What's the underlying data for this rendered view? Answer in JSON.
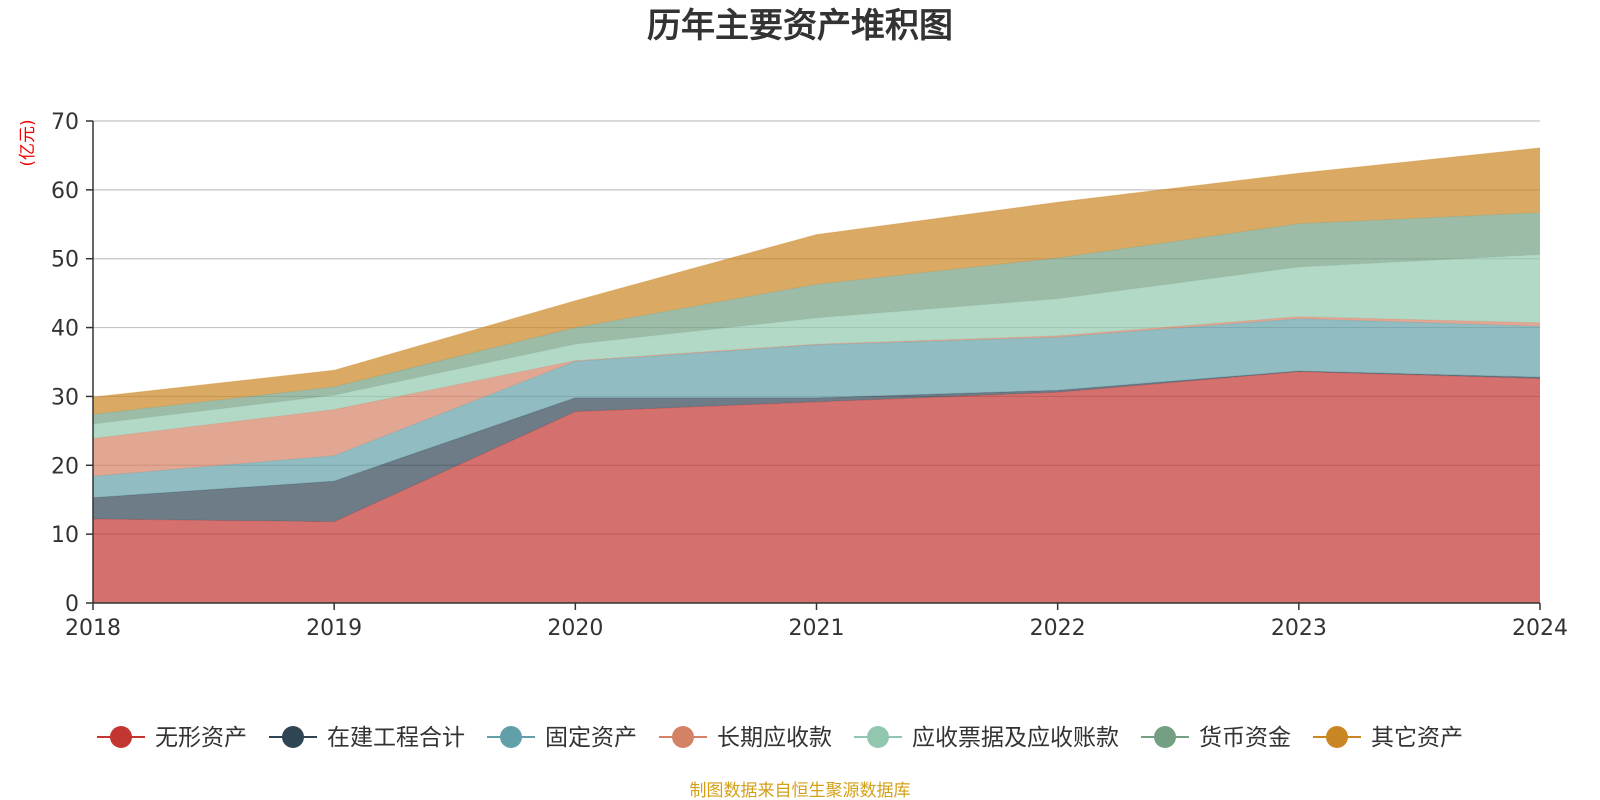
{
  "chart_data": {
    "type": "area",
    "stacked": true,
    "title": "历年主要资产堆积图",
    "ylabel": "(亿元)",
    "xlabel": "",
    "categories": [
      "2018",
      "2019",
      "2020",
      "2021",
      "2022",
      "2023",
      "2024"
    ],
    "ylim": [
      0,
      70
    ],
    "yticks": [
      0,
      10,
      20,
      30,
      40,
      50,
      60,
      70
    ],
    "grid": true,
    "legend_position": "bottom",
    "series": [
      {
        "name": "无形资产",
        "color": "#c23531",
        "values": [
          12.2,
          11.8,
          27.8,
          29.2,
          30.6,
          33.6,
          32.6
        ]
      },
      {
        "name": "在建工程合计",
        "color": "#2f4554",
        "values": [
          3.1,
          5.9,
          2.0,
          0.6,
          0.3,
          0.1,
          0.2
        ]
      },
      {
        "name": "固定资产",
        "color": "#61a0a8",
        "values": [
          3.1,
          3.7,
          5.3,
          7.7,
          7.7,
          7.6,
          7.4
        ]
      },
      {
        "name": "长期应收款",
        "color": "#d48265",
        "values": [
          5.5,
          6.7,
          0.1,
          0.1,
          0.2,
          0.3,
          0.5
        ]
      },
      {
        "name": "应收票据及应收账款",
        "color": "#91c7ae",
        "values": [
          2.1,
          2.1,
          2.4,
          3.8,
          5.4,
          7.2,
          9.9
        ]
      },
      {
        "name": "货币资金",
        "color": "#749f83",
        "values": [
          1.4,
          1.2,
          2.4,
          4.9,
          5.9,
          6.3,
          6.1
        ]
      },
      {
        "name": "其它资产",
        "color": "#ca8622",
        "values": [
          2.5,
          2.4,
          3.9,
          7.2,
          8.1,
          7.3,
          9.4
        ]
      }
    ]
  },
  "footer": {
    "source": "制图数据来自恒生聚源数据库",
    "source_color": "#d4a017"
  }
}
